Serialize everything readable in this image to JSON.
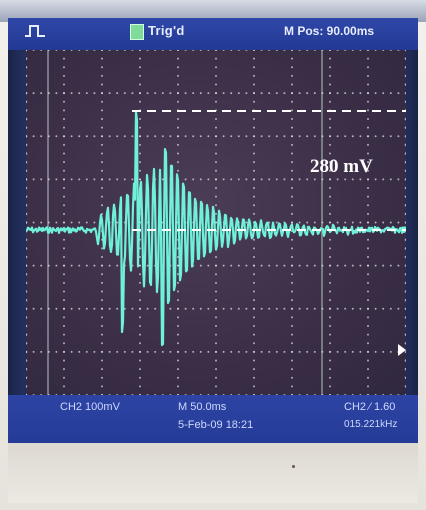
{
  "header": {
    "trigger_status": "Trig'd",
    "horizontal_position": "M Pos: 90.00ms"
  },
  "footer": {
    "channel_scale": "CH2  100mV",
    "time_base": "M 50.0ms",
    "datetime": "5-Feb-09 18:21",
    "trigger_setting": "CH2 ⁄ 1.60",
    "frequency": "015.221kHz"
  },
  "annotation": {
    "amplitude_label": "280 mV"
  },
  "colors": {
    "trace": "#6ff0d8",
    "screen": "#23305e",
    "status_bar": "#2f47a8",
    "grid_dots": "#e6e6e6",
    "annotation": "#ffffff"
  }
}
